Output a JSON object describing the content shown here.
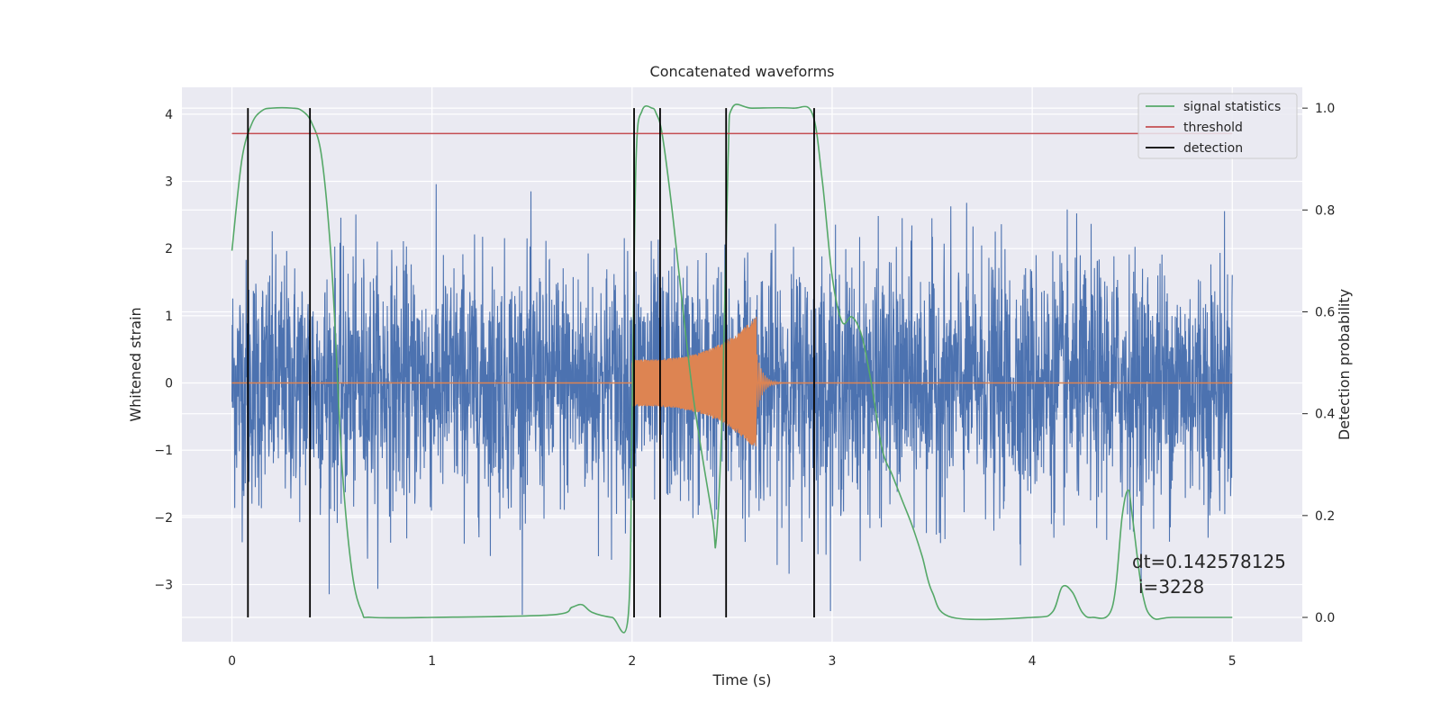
{
  "chart_data": {
    "type": "line",
    "title": "Concatenated waveforms",
    "xlabel": "Time (s)",
    "ylabel": "Whitened strain",
    "ylabel_right": "Detection probability",
    "xlim": [
      -0.25,
      5.35
    ],
    "ylim": [
      -3.85,
      4.4
    ],
    "ylim_right": [
      -0.0477,
      1.0409
    ],
    "xticks": [
      0,
      1,
      2,
      3,
      4,
      5
    ],
    "yticks": [
      -3,
      -2,
      -1,
      0,
      1,
      2,
      3,
      4
    ],
    "yticks_right": [
      0.0,
      0.2,
      0.4,
      0.6,
      0.8,
      1.0
    ],
    "xtick_labels": [
      "0",
      "1",
      "2",
      "3",
      "4",
      "5"
    ],
    "ytick_labels": [
      "−3",
      "−2",
      "−1",
      "0",
      "1",
      "2",
      "3",
      "4"
    ],
    "ytick_labels_right": [
      "0.0",
      "0.2",
      "0.4",
      "0.6",
      "0.8",
      "1.0"
    ],
    "grid": true,
    "legend_position": "top-right",
    "colors": {
      "strain": "#4c72b0",
      "template": "#dd8452",
      "statistics": "#55a868",
      "threshold": "#c44e52",
      "detection": "#000000",
      "plot_bg": "#eaeaf2"
    },
    "series": [
      {
        "name": "",
        "axis": "left",
        "kind": "noise",
        "x_range": [
          0,
          5
        ],
        "envelope": {
          "typical": 1.4,
          "peak": 3.45
        }
      },
      {
        "name": "",
        "axis": "left",
        "kind": "chirp",
        "x_range": [
          2.0,
          2.62
        ],
        "amplitude": [
          0.35,
          1.0
        ]
      },
      {
        "name": "signal statistics",
        "axis": "right",
        "x": [
          0,
          0.05,
          0.1,
          0.15,
          0.2,
          0.3,
          0.35,
          0.4,
          0.45,
          0.5,
          0.55,
          0.6,
          0.65,
          0.7,
          1.0,
          1.6,
          1.7,
          1.75,
          1.8,
          1.9,
          1.98,
          2.0,
          2.02,
          2.05,
          2.1,
          2.12,
          2.15,
          2.2,
          2.3,
          2.4,
          2.42,
          2.45,
          2.48,
          2.5,
          2.6,
          2.8,
          2.9,
          2.95,
          3.0,
          3.05,
          3.1,
          3.15,
          3.2,
          3.25,
          3.3,
          3.35,
          3.4,
          3.45,
          3.5,
          3.6,
          4.0,
          4.1,
          4.15,
          4.2,
          4.25,
          4.3,
          4.4,
          4.45,
          4.48,
          4.5,
          4.55,
          4.6,
          4.7,
          5.0
        ],
        "y": [
          0.72,
          0.9,
          0.97,
          0.995,
          1.0,
          1.0,
          0.995,
          0.97,
          0.9,
          0.68,
          0.3,
          0.09,
          0.01,
          0.0,
          0.0,
          0.005,
          0.02,
          0.025,
          0.01,
          0.0,
          0.0,
          0.4,
          0.9,
          0.995,
          1.0,
          0.99,
          0.95,
          0.8,
          0.45,
          0.2,
          0.15,
          0.4,
          0.9,
          1.0,
          1.0,
          1.0,
          0.99,
          0.86,
          0.67,
          0.58,
          0.59,
          0.55,
          0.45,
          0.33,
          0.28,
          0.23,
          0.18,
          0.12,
          0.05,
          0.0,
          0.0,
          0.01,
          0.06,
          0.05,
          0.01,
          0.0,
          0.02,
          0.2,
          0.25,
          0.2,
          0.05,
          0.0,
          0.0,
          0.0
        ]
      },
      {
        "name": "threshold",
        "axis": "right",
        "x": [
          0,
          5
        ],
        "y": [
          0.95,
          0.95
        ]
      },
      {
        "name": "detection",
        "axis": "right",
        "kind": "vlines",
        "x": [
          0.08,
          0.39,
          2.01,
          2.14,
          2.47,
          2.91
        ],
        "y_range": [
          0.0,
          1.0
        ]
      }
    ],
    "legend": [
      "signal statistics",
      "threshold",
      "detection"
    ],
    "annotations": [
      "dt=0.142578125",
      "i=3228"
    ]
  }
}
